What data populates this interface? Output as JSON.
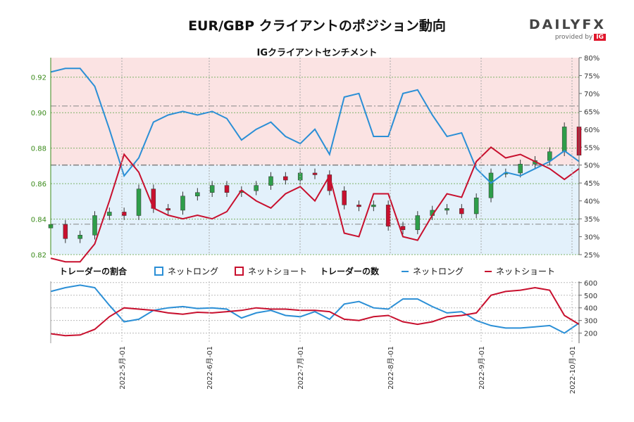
{
  "header": {
    "title": "EUR/GBP クライアントのポジション動向",
    "subtitle": "IGクライアントセンチメント",
    "brand_name": "DAILYFX",
    "brand_tagline": "provided by",
    "brand_ig": "IG"
  },
  "legend": {
    "ratio_heading": "トレーダーの割合",
    "ratio_long": "ネットロング",
    "ratio_short": "ネットショート",
    "count_heading": "トレーダーの数",
    "count_long": "ネットロング",
    "count_short": "ネットショート"
  },
  "colors": {
    "long": "#2b8fd6",
    "short": "#c8102e",
    "long_fill": "#e3f1fb",
    "short_fill": "#fbe3e3",
    "candle_up": "#2e9e4a",
    "candle_down": "#c8102e",
    "axis_left": "#3a8a1a"
  },
  "chart_data": [
    {
      "type": "line",
      "title": "EUR/GBP クライアントのポジション動向",
      "subtitle": "IGクライアントセンチメント",
      "x_label_dates": [
        "2022-5月-01",
        "2022-6月-01",
        "2022-7月-01",
        "2022-8月-01",
        "2022-9月-01",
        "2022-10月-01"
      ],
      "y_left_ticks": [
        "0.82",
        "0.84",
        "0.86",
        "0.88",
        "0.90",
        "0.92"
      ],
      "y_left_range": [
        0.82,
        0.931
      ],
      "y_right_ticks": [
        "25%",
        "30%",
        "35%",
        "40%",
        "45%",
        "50%",
        "55%",
        "60%",
        "65%",
        "70%",
        "75%",
        "80%"
      ],
      "y_right_range": [
        25,
        80
      ],
      "reference_levels_pct": [
        33.5,
        50,
        66.5
      ],
      "grid": true,
      "dates": [
        "04-08",
        "04-13",
        "04-18",
        "04-23",
        "04-28",
        "05-03",
        "05-08",
        "05-13",
        "05-18",
        "05-23",
        "05-28",
        "06-02",
        "06-07",
        "06-12",
        "06-17",
        "06-22",
        "06-27",
        "07-02",
        "07-07",
        "07-12",
        "07-17",
        "07-22",
        "07-27",
        "08-01",
        "08-06",
        "08-11",
        "08-16",
        "08-21",
        "08-26",
        "08-31",
        "09-05",
        "09-10",
        "09-15",
        "09-20",
        "09-25",
        "09-30",
        "10-03"
      ],
      "price_close": [
        0.837,
        0.829,
        0.831,
        0.842,
        0.844,
        0.842,
        0.857,
        0.846,
        0.845,
        0.853,
        0.855,
        0.859,
        0.855,
        0.856,
        0.859,
        0.864,
        0.862,
        0.866,
        0.865,
        0.856,
        0.848,
        0.847,
        0.848,
        0.836,
        0.834,
        0.842,
        0.845,
        0.846,
        0.843,
        0.852,
        0.866,
        0.866,
        0.871,
        0.873,
        0.878,
        0.892,
        0.876
      ],
      "series": [
        {
          "name": "ネットロング",
          "axis": "right",
          "unit": "%",
          "values": [
            76,
            77,
            77,
            72,
            60,
            47,
            52,
            62,
            64,
            65,
            64,
            65,
            63,
            57,
            60,
            62,
            58,
            56,
            60,
            53,
            69,
            70,
            58,
            58,
            70,
            71,
            64,
            58,
            59,
            49,
            45,
            48,
            47,
            49,
            51,
            54,
            51
          ]
        },
        {
          "name": "ネットショート",
          "axis": "right",
          "unit": "%",
          "values": [
            24,
            23,
            23,
            28,
            40,
            53,
            48,
            38,
            36,
            35,
            36,
            35,
            37,
            43,
            40,
            38,
            42,
            44,
            40,
            47,
            31,
            30,
            42,
            42,
            30,
            29,
            36,
            42,
            41,
            51,
            55,
            52,
            53,
            51,
            49,
            46,
            49
          ]
        }
      ]
    },
    {
      "type": "line",
      "title": "トレーダーの数",
      "y_ticks": [
        "200",
        "300",
        "400",
        "500",
        "600"
      ],
      "y_range": [
        120,
        610
      ],
      "series": [
        {
          "name": "ネットロング",
          "values": [
            530,
            560,
            580,
            560,
            420,
            290,
            310,
            380,
            400,
            410,
            395,
            400,
            390,
            320,
            360,
            380,
            340,
            330,
            370,
            310,
            430,
            450,
            400,
            390,
            470,
            470,
            410,
            360,
            370,
            300,
            260,
            240,
            240,
            250,
            260,
            200,
            280
          ]
        },
        {
          "name": "ネットショート",
          "values": [
            195,
            180,
            185,
            230,
            330,
            400,
            390,
            380,
            360,
            350,
            365,
            360,
            370,
            380,
            400,
            390,
            390,
            380,
            380,
            370,
            310,
            300,
            330,
            340,
            290,
            270,
            290,
            330,
            340,
            360,
            500,
            530,
            540,
            560,
            540,
            340,
            270
          ]
        }
      ]
    }
  ]
}
